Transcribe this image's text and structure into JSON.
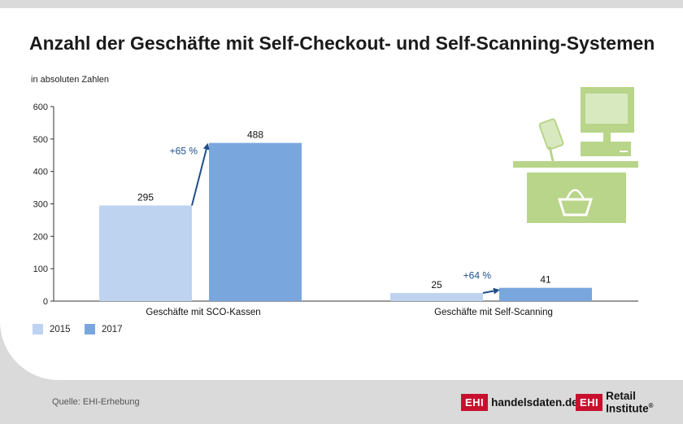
{
  "title": "Anzahl der Geschäfte mit Self-Checkout- und Self-Scanning-Systemen",
  "subtitle": "in absoluten Zahlen",
  "chart_data": {
    "type": "bar",
    "categories": [
      "Geschäfte mit SCO-Kassen",
      "Geschäfte mit Self-Scanning"
    ],
    "series": [
      {
        "name": "2015",
        "values": [
          295,
          25
        ],
        "color": "#bed3ef"
      },
      {
        "name": "2017",
        "values": [
          488,
          41
        ],
        "color": "#7aa6de"
      }
    ],
    "ylim": [
      0,
      600
    ],
    "yticks": [
      0,
      100,
      200,
      300,
      400,
      500,
      600
    ],
    "annotations": [
      "+65 %",
      "+64 %"
    ],
    "annotation_color": "#1f4e8c",
    "legend": "bottom-left",
    "grid": false
  },
  "illustration": {
    "name": "self-checkout-terminal-icon",
    "color": "#b8d58a"
  },
  "footer": {
    "source": "Quelle: EHI-Erhebung",
    "logo1_box": "EHI",
    "logo1_text": "handelsdaten.de",
    "logo2_box": "EHI",
    "logo2_text": "Retail Institute",
    "logo2_reg": "®"
  }
}
